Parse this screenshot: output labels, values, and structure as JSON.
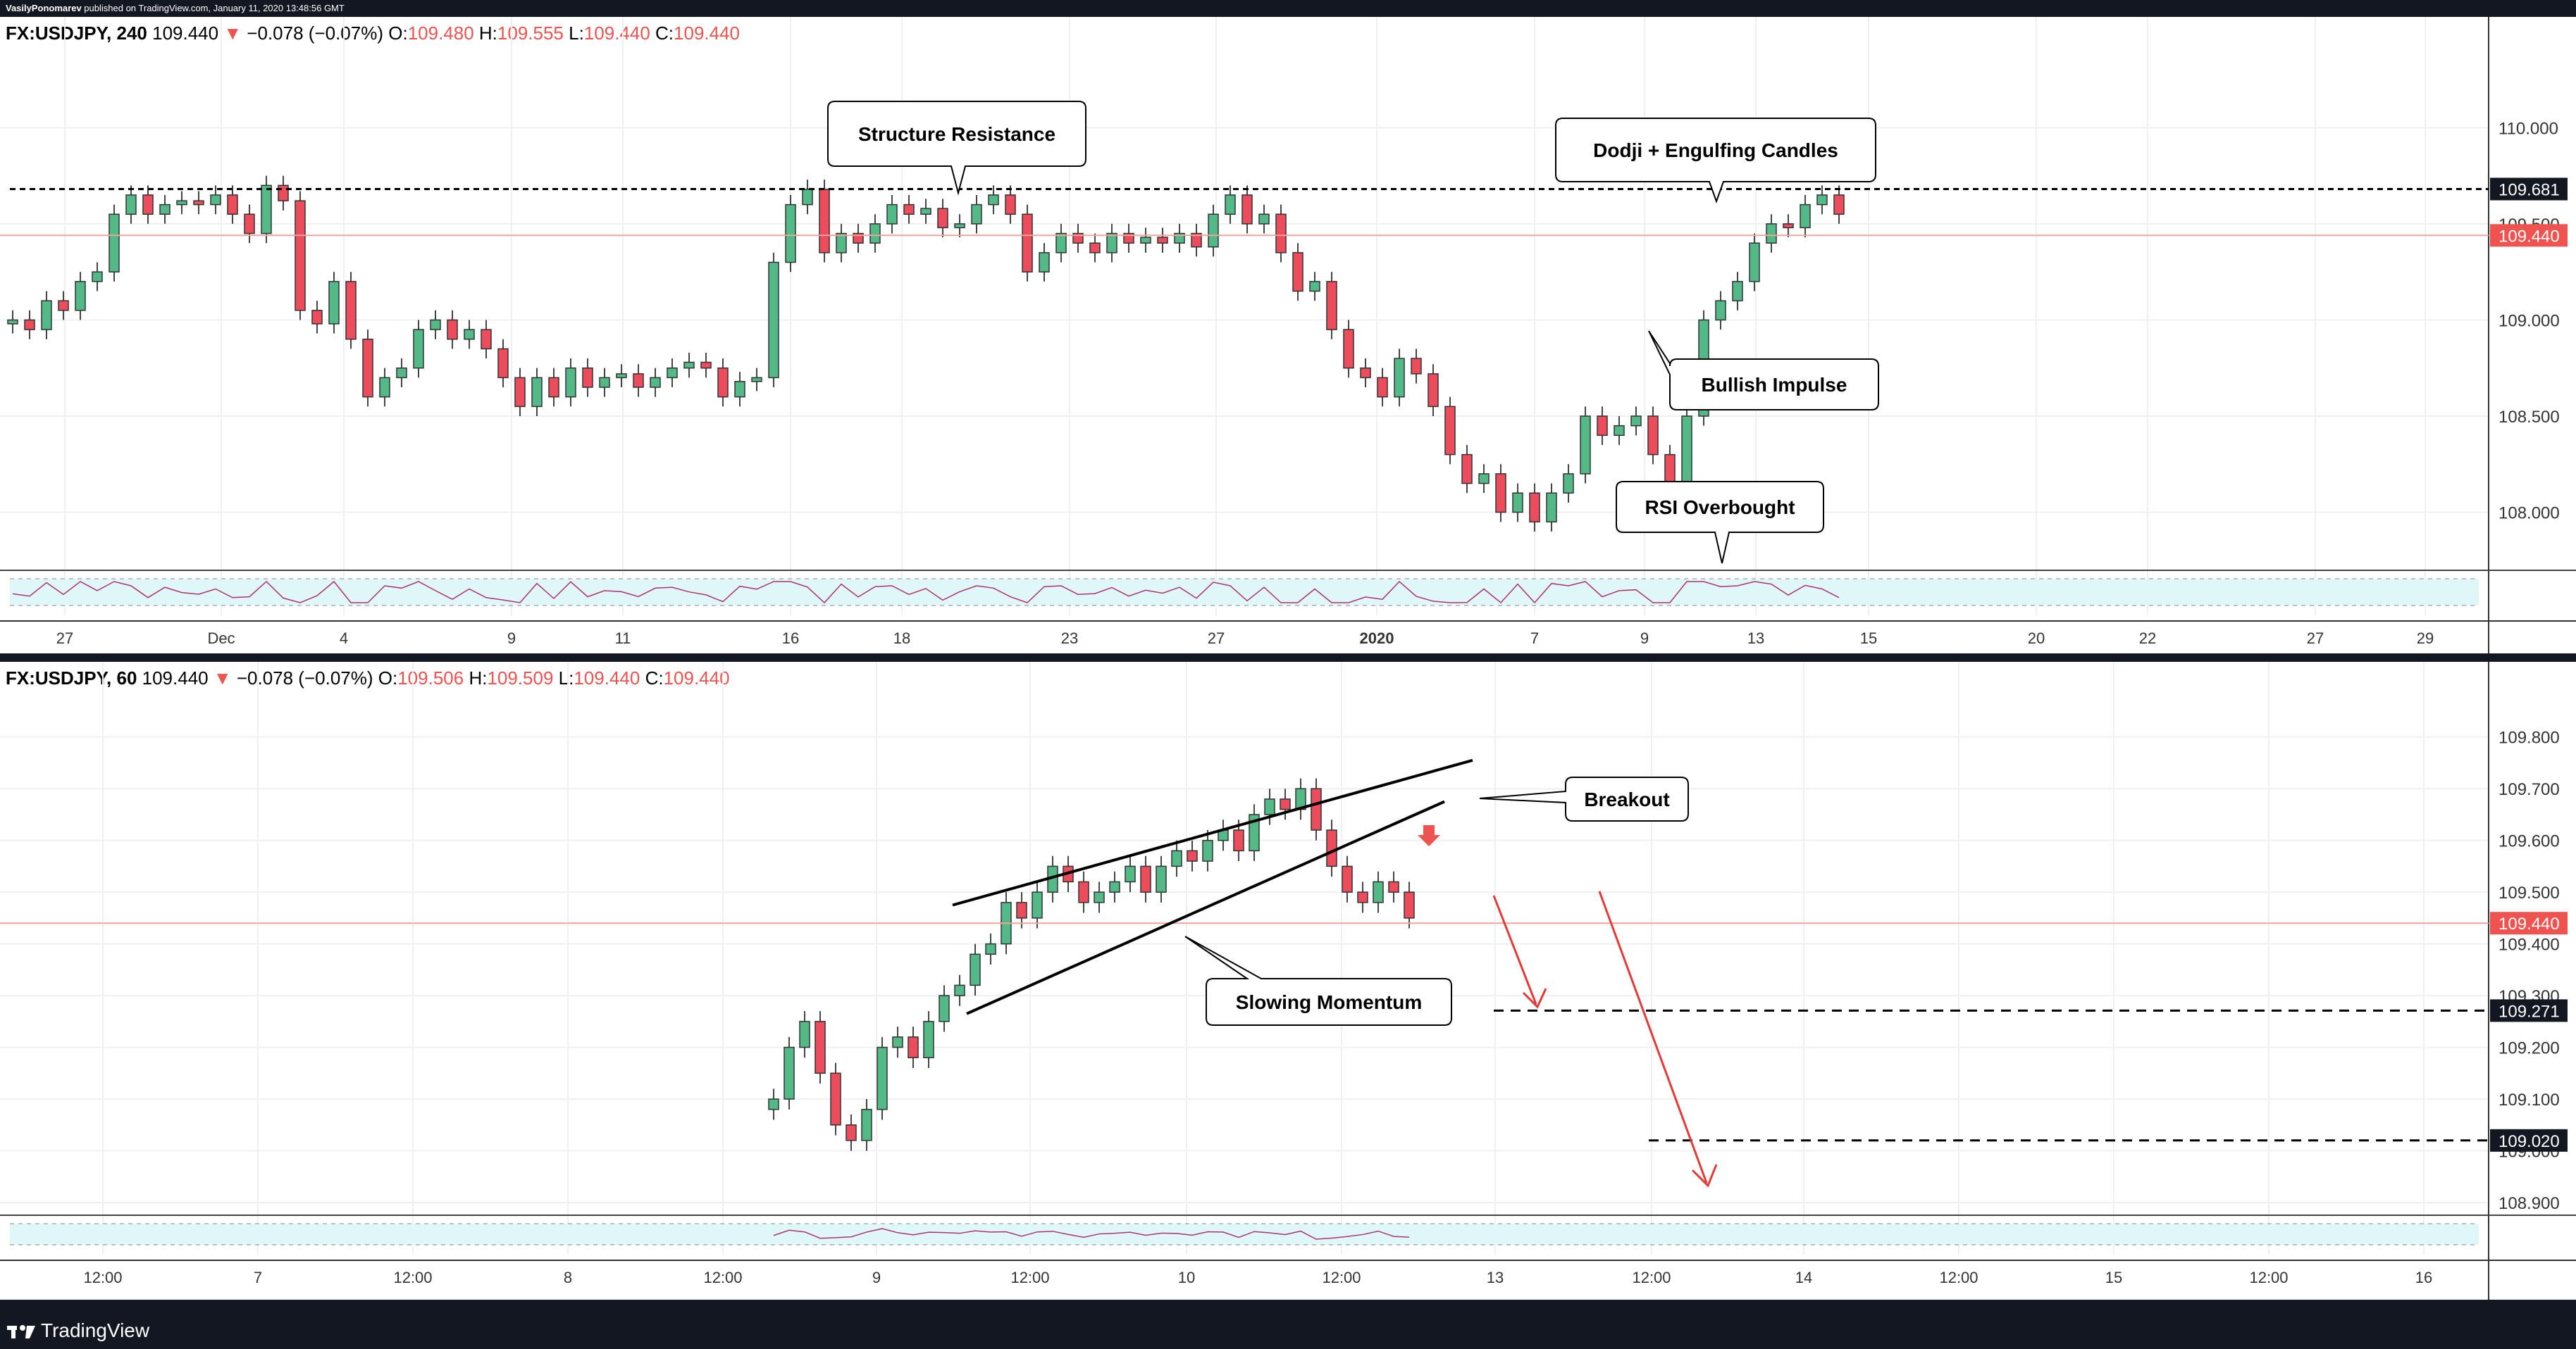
{
  "header": {
    "author": "VasilyPonomarev",
    "published_text": "published on TradingView.com, January 11, 2020 13:48:56 GMT"
  },
  "colors": {
    "up": "#53b987",
    "down": "#eb4d5c",
    "price_line": "#ef5350",
    "rsi_band": "#e0f7fa"
  },
  "footer": {
    "brand": "TradingView",
    "icon": "tradingview-logo-icon"
  },
  "panels": [
    {
      "id": "h4",
      "legend": {
        "symbol": "FX:USDJPY, 240",
        "last": "109.440",
        "change": "−0.078 (−0.07%)",
        "o_label": "O:",
        "o": "109.480",
        "h_label": "H:",
        "h": "109.555",
        "l_label": "L:",
        "l": "109.440",
        "c_label": "C:",
        "c": "109.440"
      },
      "y_ticks": [
        "110.000",
        "109.500",
        "109.000",
        "108.500",
        "108.000"
      ],
      "x_ticks": [
        "27",
        "Dec",
        "4",
        "9",
        "11",
        "16",
        "18",
        "23",
        "27",
        "2020",
        "7",
        "9",
        "13",
        "15",
        "20",
        "22",
        "27",
        "29"
      ],
      "price_labels": [
        {
          "text": "109.681",
          "style": "dark"
        },
        {
          "text": "109.440",
          "style": "red"
        }
      ],
      "annotations": [
        "Structure Resistance",
        "Dodji + Engulfing Candles",
        "Bullish Impulse",
        "RSI Overbought"
      ]
    },
    {
      "id": "h1",
      "legend": {
        "symbol": "FX:USDJPY, 60",
        "last": "109.440",
        "change": "−0.078 (−0.07%)",
        "o_label": "O:",
        "o": "109.506",
        "h_label": "H:",
        "h": "109.509",
        "l_label": "L:",
        "l": "109.440",
        "c_label": "C:",
        "c": "109.440"
      },
      "y_ticks": [
        "109.800",
        "109.700",
        "109.600",
        "109.500",
        "109.400",
        "109.300",
        "109.200",
        "109.100",
        "109.000",
        "108.900"
      ],
      "x_ticks": [
        "12:00",
        "7",
        "12:00",
        "8",
        "12:00",
        "9",
        "12:00",
        "10",
        "12:00",
        "13",
        "12:00",
        "14",
        "12:00",
        "15",
        "12:00",
        "16"
      ],
      "price_labels": [
        {
          "text": "109.440",
          "style": "red"
        },
        {
          "text": "109.271",
          "style": "dark"
        },
        {
          "text": "109.020",
          "style": "dark"
        }
      ],
      "annotations": [
        "Breakout",
        "Slowing Momentum"
      ]
    }
  ],
  "chart_data": [
    {
      "type": "candlestick",
      "title": "FX:USDJPY, 240",
      "ylim": [
        107.72,
        110.32
      ],
      "x_date_ticks": [
        "27",
        "Dec",
        "4",
        "9",
        "11",
        "16",
        "18",
        "23",
        "27",
        "2020",
        "7",
        "9",
        "13",
        "15",
        "20",
        "22",
        "27",
        "29"
      ],
      "resistance_level": 109.681,
      "last_price": 109.44,
      "closes": [
        109.0,
        108.95,
        109.1,
        109.05,
        109.2,
        109.25,
        109.55,
        109.65,
        109.55,
        109.6,
        109.62,
        109.6,
        109.65,
        109.55,
        109.45,
        109.7,
        109.62,
        109.05,
        108.98,
        109.2,
        108.9,
        108.6,
        108.7,
        108.75,
        108.95,
        109.0,
        108.9,
        108.95,
        108.85,
        108.7,
        108.55,
        108.7,
        108.6,
        108.75,
        108.65,
        108.7,
        108.72,
        108.65,
        108.7,
        108.75,
        108.78,
        108.75,
        108.6,
        108.68,
        108.7,
        109.3,
        109.6,
        109.68,
        109.35,
        109.45,
        109.4,
        109.5,
        109.6,
        109.55,
        109.58,
        109.48,
        109.5,
        109.6,
        109.65,
        109.55,
        109.25,
        109.35,
        109.45,
        109.4,
        109.35,
        109.45,
        109.4,
        109.43,
        109.4,
        109.45,
        109.38,
        109.55,
        109.65,
        109.5,
        109.55,
        109.35,
        109.15,
        109.2,
        108.95,
        108.75,
        108.7,
        108.6,
        108.8,
        108.72,
        108.55,
        108.3,
        108.15,
        108.2,
        108.0,
        108.1,
        107.95,
        108.1,
        108.2,
        108.5,
        108.4,
        108.45,
        108.5,
        108.3,
        108.05,
        108.5,
        109.0,
        109.1,
        109.2,
        109.4,
        109.5,
        109.48,
        109.6,
        109.65,
        109.55
      ],
      "rsi_band": [
        30,
        70
      ],
      "annotations": [
        "Structure Resistance",
        "Dodji + Engulfing Candles",
        "Bullish Impulse",
        "RSI Overbought"
      ]
    },
    {
      "type": "candlestick",
      "title": "FX:USDJPY, 60",
      "ylim": [
        108.87,
        109.85
      ],
      "x_time_ticks": [
        "12:00",
        "7",
        "12:00",
        "8",
        "12:00",
        "9",
        "12:00",
        "10",
        "12:00",
        "13",
        "12:00",
        "14",
        "12:00",
        "15",
        "12:00",
        "16"
      ],
      "closes": [
        109.1,
        109.2,
        109.25,
        109.15,
        109.05,
        109.02,
        109.08,
        109.2,
        109.22,
        109.18,
        109.25,
        109.3,
        109.32,
        109.38,
        109.4,
        109.48,
        109.45,
        109.5,
        109.55,
        109.52,
        109.48,
        109.5,
        109.52,
        109.55,
        109.5,
        109.55,
        109.58,
        109.56,
        109.6,
        109.62,
        109.58,
        109.65,
        109.68,
        109.66,
        109.7,
        109.62,
        109.55,
        109.5,
        109.48,
        109.52,
        109.5,
        109.45
      ],
      "wedge_upper": [
        [
          109.475,
          109.755
        ]
      ],
      "wedge_lower": [
        [
          109.265,
          109.675
        ]
      ],
      "targets": [
        109.271,
        109.02
      ],
      "last_price": 109.44,
      "rsi_band": [
        30,
        70
      ],
      "annotations": [
        "Breakout",
        "Slowing Momentum"
      ]
    }
  ]
}
